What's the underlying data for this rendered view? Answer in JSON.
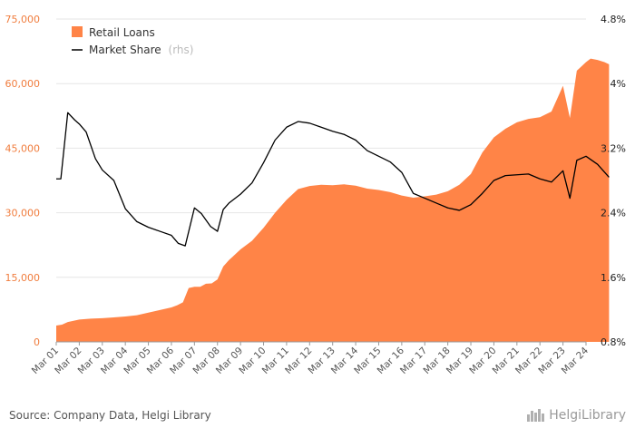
{
  "chart_data": {
    "type": "area",
    "x": [
      "Mar 01",
      "Mar 02",
      "Mar 03",
      "Mar 04",
      "Mar 05",
      "Mar 06",
      "Mar 07",
      "Mar 08",
      "Mar 09",
      "Mar 10",
      "Mar 11",
      "Mar 12",
      "Mar 13",
      "Mar 14",
      "Mar 15",
      "Mar 16",
      "Mar 17",
      "Mar 18",
      "Mar 19",
      "Mar 20",
      "Mar 21",
      "Mar 22",
      "Mar 23",
      "Mar 24"
    ],
    "series": [
      {
        "name": "Retail Loans",
        "axis": "left",
        "color": "#ff8447",
        "points": [
          [
            0.0,
            3800
          ],
          [
            0.25,
            4000
          ],
          [
            0.5,
            4600
          ],
          [
            1.0,
            5200
          ],
          [
            1.5,
            5400
          ],
          [
            2.0,
            5500
          ],
          [
            2.5,
            5700
          ],
          [
            3.0,
            5900
          ],
          [
            3.5,
            6200
          ],
          [
            4.0,
            6800
          ],
          [
            4.5,
            7400
          ],
          [
            5.0,
            8000
          ],
          [
            5.25,
            8500
          ],
          [
            5.5,
            9200
          ],
          [
            5.75,
            12500
          ],
          [
            6.0,
            12800
          ],
          [
            6.25,
            12800
          ],
          [
            6.5,
            13500
          ],
          [
            6.75,
            13600
          ],
          [
            7.0,
            14500
          ],
          [
            7.25,
            17500
          ],
          [
            7.5,
            19000
          ],
          [
            8.0,
            21500
          ],
          [
            8.5,
            23500
          ],
          [
            9.0,
            26500
          ],
          [
            9.5,
            30000
          ],
          [
            10.0,
            33000
          ],
          [
            10.5,
            35500
          ],
          [
            11.0,
            36200
          ],
          [
            11.5,
            36500
          ],
          [
            12.0,
            36400
          ],
          [
            12.5,
            36600
          ],
          [
            13.0,
            36300
          ],
          [
            13.5,
            35600
          ],
          [
            14.0,
            35300
          ],
          [
            14.5,
            34800
          ],
          [
            15.0,
            34000
          ],
          [
            15.5,
            33500
          ],
          [
            16.0,
            33800
          ],
          [
            16.5,
            34200
          ],
          [
            17.0,
            35000
          ],
          [
            17.5,
            36500
          ],
          [
            18.0,
            39000
          ],
          [
            18.5,
            44000
          ],
          [
            19.0,
            47500
          ],
          [
            19.5,
            49500
          ],
          [
            20.0,
            51000
          ],
          [
            20.5,
            51800
          ],
          [
            21.0,
            52200
          ],
          [
            21.5,
            53500
          ],
          [
            22.0,
            59500
          ],
          [
            22.3,
            52000
          ],
          [
            22.6,
            63000
          ],
          [
            23.0,
            65000
          ],
          [
            23.2,
            65800
          ],
          [
            23.5,
            65500
          ],
          [
            23.8,
            65000
          ],
          [
            24.0,
            64500
          ]
        ]
      },
      {
        "name": "Market Share",
        "axis": "right",
        "color": "#000000",
        "points": [
          [
            0.0,
            2.82
          ],
          [
            0.2,
            2.82
          ],
          [
            0.5,
            3.64
          ],
          [
            0.8,
            3.55
          ],
          [
            1.0,
            3.5
          ],
          [
            1.3,
            3.4
          ],
          [
            1.7,
            3.07
          ],
          [
            2.0,
            2.93
          ],
          [
            2.5,
            2.8
          ],
          [
            3.0,
            2.45
          ],
          [
            3.5,
            2.29
          ],
          [
            4.0,
            2.22
          ],
          [
            4.5,
            2.17
          ],
          [
            5.0,
            2.12
          ],
          [
            5.3,
            2.02
          ],
          [
            5.6,
            1.99
          ],
          [
            6.0,
            2.46
          ],
          [
            6.3,
            2.39
          ],
          [
            6.7,
            2.23
          ],
          [
            7.0,
            2.17
          ],
          [
            7.25,
            2.44
          ],
          [
            7.5,
            2.52
          ],
          [
            8.0,
            2.63
          ],
          [
            8.5,
            2.77
          ],
          [
            9.0,
            3.02
          ],
          [
            9.5,
            3.3
          ],
          [
            10.0,
            3.46
          ],
          [
            10.5,
            3.53
          ],
          [
            11.0,
            3.51
          ],
          [
            11.5,
            3.46
          ],
          [
            12.0,
            3.41
          ],
          [
            12.5,
            3.37
          ],
          [
            13.0,
            3.3
          ],
          [
            13.5,
            3.17
          ],
          [
            14.0,
            3.1
          ],
          [
            14.5,
            3.03
          ],
          [
            15.0,
            2.9
          ],
          [
            15.5,
            2.64
          ],
          [
            16.0,
            2.58
          ],
          [
            16.5,
            2.52
          ],
          [
            17.0,
            2.46
          ],
          [
            17.5,
            2.43
          ],
          [
            18.0,
            2.5
          ],
          [
            18.5,
            2.64
          ],
          [
            19.0,
            2.8
          ],
          [
            19.5,
            2.86
          ],
          [
            20.0,
            2.87
          ],
          [
            20.5,
            2.88
          ],
          [
            21.0,
            2.82
          ],
          [
            21.5,
            2.78
          ],
          [
            22.0,
            2.92
          ],
          [
            22.3,
            2.58
          ],
          [
            22.6,
            3.05
          ],
          [
            23.0,
            3.1
          ],
          [
            23.5,
            3.0
          ],
          [
            24.0,
            2.84
          ]
        ]
      }
    ],
    "legend": [
      {
        "label": "Retail Loans",
        "note": ""
      },
      {
        "label": "Market Share",
        "note": "(rhs)"
      }
    ],
    "y_left": {
      "ylim": [
        0,
        75000
      ],
      "ticks": [
        "0",
        "15,000",
        "30,000",
        "45,000",
        "60,000",
        "75,000"
      ]
    },
    "y_right": {
      "ylim": [
        0.8,
        4.8
      ],
      "ticks": [
        "0.8%",
        "1.6%",
        "2.4%",
        "3.2%",
        "4%",
        "4.8%"
      ]
    },
    "grid": "horizontal",
    "legend_position": "top-left"
  },
  "footer": {
    "source": "Source: Company Data, Helgi Library",
    "brand": "HelgiLibrary"
  }
}
